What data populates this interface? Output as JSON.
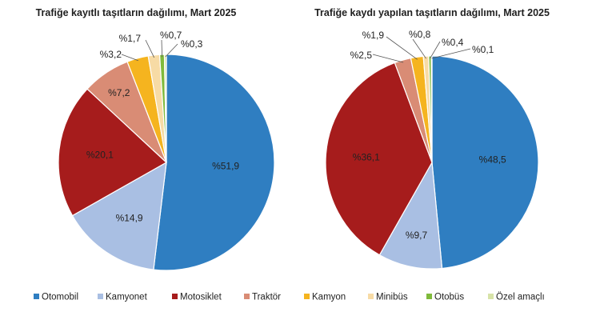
{
  "categories": [
    "Otomobil",
    "Kamyonet",
    "Motosiklet",
    "Traktör",
    "Kamyon",
    "Minibüs",
    "Otobüs",
    "Özel amaçlı"
  ],
  "colors": [
    "#2f7ec1",
    "#a9bfe3",
    "#a61c1c",
    "#d98c75",
    "#f5b41f",
    "#f7dba5",
    "#7fba3b",
    "#d7e3a8"
  ],
  "chart_data": [
    {
      "type": "pie",
      "title": "Trafiğe kayıtlı taşıtların dağılımı, Mart 2025",
      "categories": [
        "Otomobil",
        "Kamyonet",
        "Motosiklet",
        "Traktör",
        "Kamyon",
        "Minibüs",
        "Otobüs",
        "Özel amaçlı"
      ],
      "values": [
        51.9,
        14.9,
        20.1,
        7.2,
        3.2,
        1.7,
        0.7,
        0.3
      ],
      "labels": [
        "%51,9",
        "%14,9",
        "%20,1",
        "%7,2",
        "%3,2",
        "%1,7",
        "%0,7",
        "%0,3"
      ],
      "legend": "bottom"
    },
    {
      "type": "pie",
      "title": "Trafiğe kaydı yapılan taşıtların dağılımı, Mart 2025",
      "categories": [
        "Otomobil",
        "Kamyonet",
        "Motosiklet",
        "Traktör",
        "Kamyon",
        "Minibüs",
        "Otobüs",
        "Özel amaçlı"
      ],
      "values": [
        48.5,
        9.7,
        36.1,
        2.5,
        1.9,
        0.8,
        0.4,
        0.1
      ],
      "labels": [
        "%48,5",
        "%9,7",
        "%36,1",
        "%2,5",
        "%1,9",
        "%0,8",
        "%0,4",
        "%0,1"
      ],
      "legend": "bottom"
    }
  ]
}
